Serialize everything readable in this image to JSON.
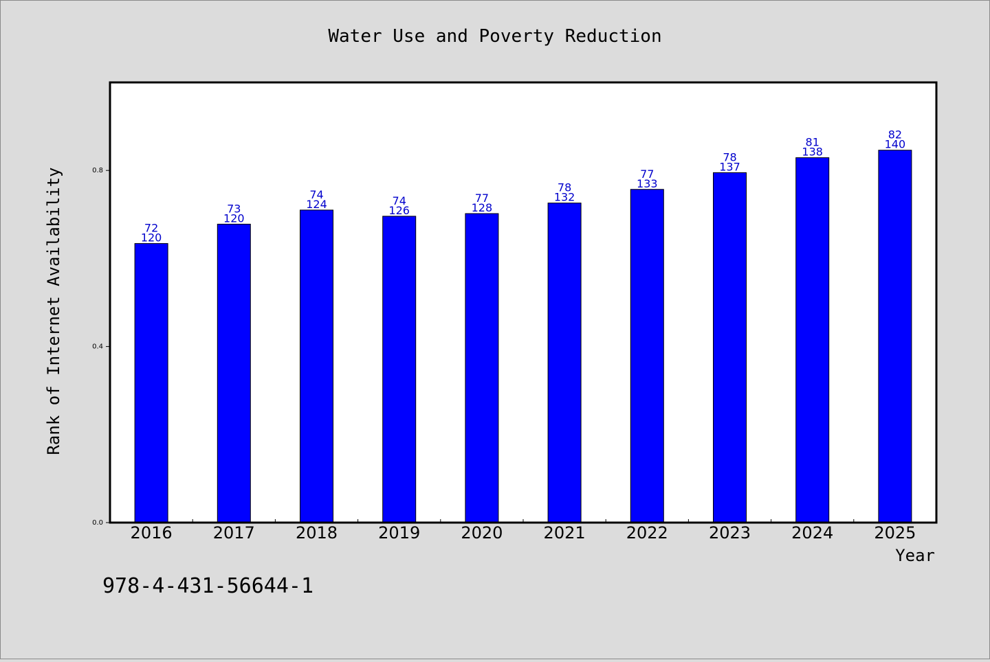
{
  "chart_data": {
    "type": "bar",
    "title": "Water Use and Poverty Reduction",
    "xlabel": "Year",
    "ylabel": "Rank of Internet Availability",
    "categories": [
      "2016",
      "2017",
      "2018",
      "2019",
      "2020",
      "2021",
      "2022",
      "2023",
      "2024",
      "2025"
    ],
    "values": [
      0.634,
      0.678,
      0.71,
      0.696,
      0.702,
      0.726,
      0.757,
      0.795,
      0.829,
      0.846
    ],
    "bar_labels": {
      "upper": [
        "72",
        "73",
        "74",
        "74",
        "77",
        "78",
        "77",
        "78",
        "81",
        "82"
      ],
      "lower": [
        "120",
        "120",
        "124",
        "126",
        "128",
        "132",
        "133",
        "137",
        "138",
        "140"
      ]
    },
    "ylim": [
      0,
      1.0
    ],
    "yticks": [
      0.0,
      0.4,
      0.8
    ],
    "ytick_labels": [
      "0.0",
      "0.4",
      "0.8"
    ],
    "grid": false,
    "colors": {
      "bar_fill": "#0000ff",
      "bar_stroke": "#000000",
      "data_label": "#0000cc",
      "plot_background": "#ffffff",
      "page_background": "#dcdcdc"
    }
  },
  "footer": {
    "code": "978-4-431-56644-1"
  }
}
